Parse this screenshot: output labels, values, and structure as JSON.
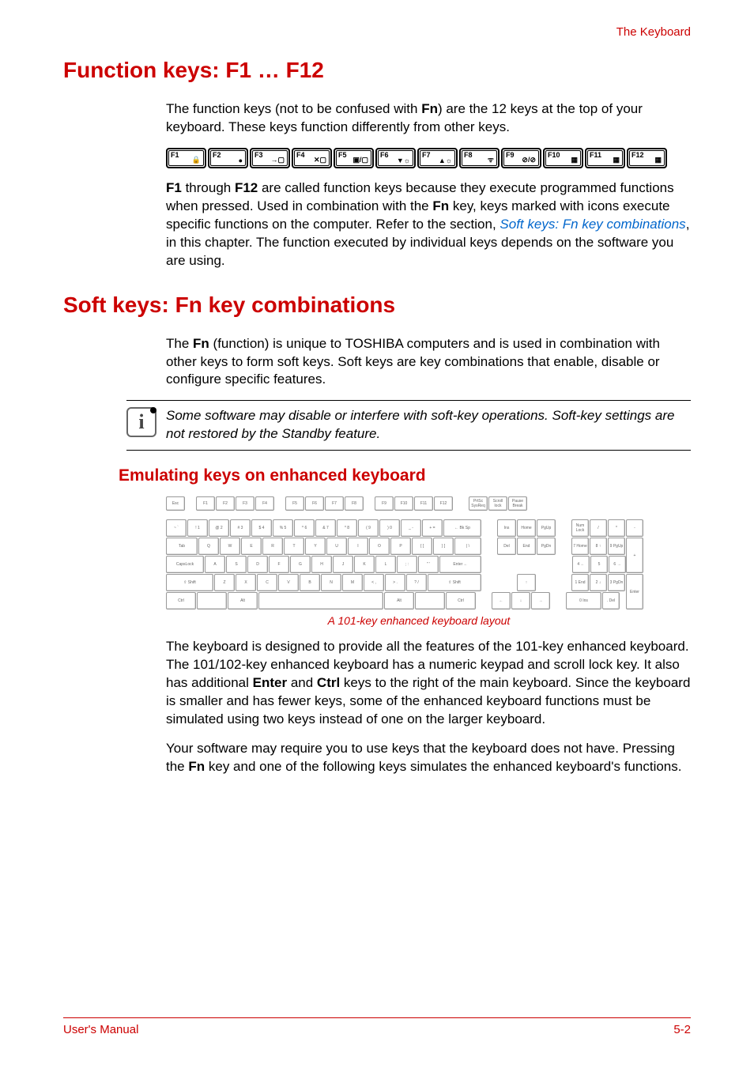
{
  "header": {
    "section_name": "The Keyboard"
  },
  "section1": {
    "title": "Function keys: F1 … F12",
    "para1_before": "The function keys (not to be confused with ",
    "para1_bold": "Fn",
    "para1_after": ") are the 12 keys at the top of your keyboard. These keys function differently from other keys.",
    "fnkeys": [
      "F1",
      "F2",
      "F3",
      "F4",
      "F5",
      "F6",
      "F7",
      "F8",
      "F9",
      "F10",
      "F11",
      "F12"
    ],
    "fnkey_icons": [
      "🔒",
      "●",
      "→▢",
      "✕▢",
      "▣/▢",
      "▼☼",
      "▲☼",
      "ᯤ",
      "⊘/⊘",
      "▦",
      "▦",
      "▦"
    ],
    "para2_a": "F1",
    "para2_b": " through ",
    "para2_c": "F12",
    "para2_d": " are called function keys because they execute programmed functions when pressed. Used in combination with the ",
    "para2_e": "Fn",
    "para2_f": " key, keys marked with icons execute specific functions on the computer. Refer to the section, ",
    "para2_link": "Soft keys: Fn key combinations",
    "para2_g": ", in this chapter. The function executed by individual keys depends on the software you are using."
  },
  "section2": {
    "title": "Soft keys: Fn key combinations",
    "para1_a": "The ",
    "para1_b": "Fn",
    "para1_c": " (function) is unique to TOSHIBA computers and is used in combination with other keys to form soft keys. Soft keys are key combinations that enable, disable or configure specific features.",
    "note": "Some software may disable or interfere with soft-key operations. Soft-key settings are not restored by the Standby feature."
  },
  "section3": {
    "title": "Emulating keys on enhanced keyboard",
    "caption": "A 101-key enhanced keyboard layout",
    "para1_a": "The keyboard is designed to provide all the features of the 101-key enhanced keyboard. The 101/102-key enhanced keyboard has a numeric keypad and scroll lock key. It also has additional ",
    "para1_b": "Enter",
    "para1_c": " and ",
    "para1_d": "Ctrl",
    "para1_e": " keys to the right of the main keyboard. Since the keyboard is smaller and has fewer keys, some of the enhanced keyboard functions must be simulated using two keys instead of one on the larger keyboard.",
    "para2_a": "Your software may require you to use keys that the keyboard does not have. Pressing the ",
    "para2_b": "Fn",
    "para2_c": " key and one of the following keys simulates the enhanced keyboard's functions."
  },
  "keyboard": {
    "fn_row": [
      "Esc",
      "",
      "F1",
      "F2",
      "F3",
      "F4",
      "",
      "F5",
      "F6",
      "F7",
      "F8",
      "",
      "F9",
      "F10",
      "F11",
      "F12"
    ],
    "fn_block2": [
      "PrtSc SysReq",
      "Scroll lock",
      "Pause Break"
    ],
    "row1_main": [
      "~ `",
      "! 1",
      "@ 2",
      "# 3",
      "$ 4",
      "% 5",
      "^ 6",
      "& 7",
      "* 8",
      "( 9",
      ") 0",
      "_ -",
      "+ =",
      "← Bk Sp"
    ],
    "row1_nav": [
      "Ins",
      "Home",
      "PgUp"
    ],
    "row1_num": [
      "Num Lock",
      "/",
      "*",
      "-"
    ],
    "row2_main": [
      "Tab",
      "Q",
      "W",
      "E",
      "R",
      "T",
      "Y",
      "U",
      "I",
      "O",
      "P",
      "{ [",
      "} ]",
      "| \\"
    ],
    "row2_nav": [
      "Del",
      "End",
      "PgDn"
    ],
    "row2_num": [
      "7 Home",
      "8 ↑",
      "9 PgUp"
    ],
    "row3_main": [
      "CapsLock",
      "A",
      "S",
      "D",
      "F",
      "G",
      "H",
      "J",
      "K",
      "L",
      "; :",
      "\" '",
      "Enter ←"
    ],
    "row3_num": [
      "4 ←",
      "5",
      "6 →",
      "+"
    ],
    "row4_main": [
      "⇧ Shift",
      "Z",
      "X",
      "C",
      "V",
      "B",
      "N",
      "M",
      "< ,",
      "> .",
      "? /",
      "⇧ Shift"
    ],
    "row4_arrow": [
      "↑"
    ],
    "row4_num": [
      "1 End",
      "2 ↓",
      "3 PgDn"
    ],
    "row5_main": [
      "Ctrl",
      "",
      "Alt",
      "",
      "Alt",
      "",
      "Ctrl"
    ],
    "row5_arrow": [
      "←",
      "↓",
      "→"
    ],
    "row5_num": [
      "0 Ins",
      ". Del",
      "Enter"
    ]
  },
  "footer": {
    "left": "User's Manual",
    "right": "5-2"
  },
  "colors": {
    "red": "#cc0000",
    "link": "#0066cc",
    "key_border": "#999999"
  }
}
